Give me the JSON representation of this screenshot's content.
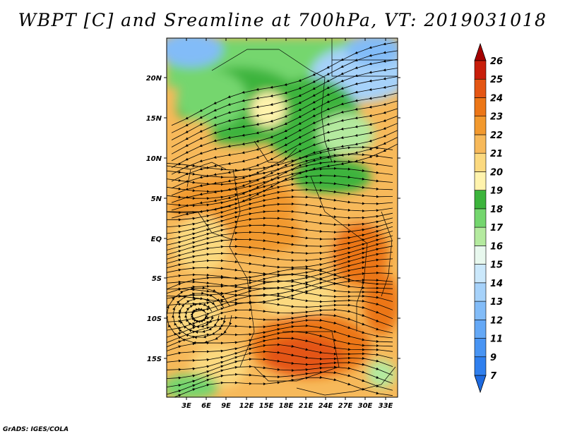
{
  "title": "WBPT [C] and Sreamline at 700hPa, VT: 2019031018",
  "credit": "GrADS: IGES/COLA",
  "map": {
    "variable": "Wet-bulb potential temperature with streamlines",
    "level": "700hPa",
    "lon_ticks": [
      "3E",
      "6E",
      "9E",
      "12E",
      "15E",
      "18E",
      "21E",
      "24E",
      "27E",
      "30E",
      "33E"
    ],
    "lat_ticks": [
      "20N",
      "15N",
      "10N",
      "5N",
      "EQ",
      "5S",
      "10S",
      "15S"
    ],
    "lon_range": [
      0,
      35
    ],
    "lat_range": [
      -20,
      25
    ]
  },
  "colorbar": {
    "levels": [
      "7",
      "9",
      "11",
      "12",
      "13",
      "14",
      "15",
      "16",
      "17",
      "18",
      "19",
      "20",
      "21",
      "22",
      "23",
      "24",
      "25",
      "26"
    ],
    "colors": [
      "#1e6ae0",
      "#2f7fee",
      "#4894f3",
      "#64a8f6",
      "#82bcf8",
      "#a6d2fa",
      "#cbe8fb",
      "#e8f8ee",
      "#b4ea9f",
      "#74d66e",
      "#3cb43c",
      "#fff3ad",
      "#fbd97f",
      "#f7b95a",
      "#f2992e",
      "#ec7617",
      "#e45513",
      "#c81e0b",
      "#a40000"
    ]
  }
}
